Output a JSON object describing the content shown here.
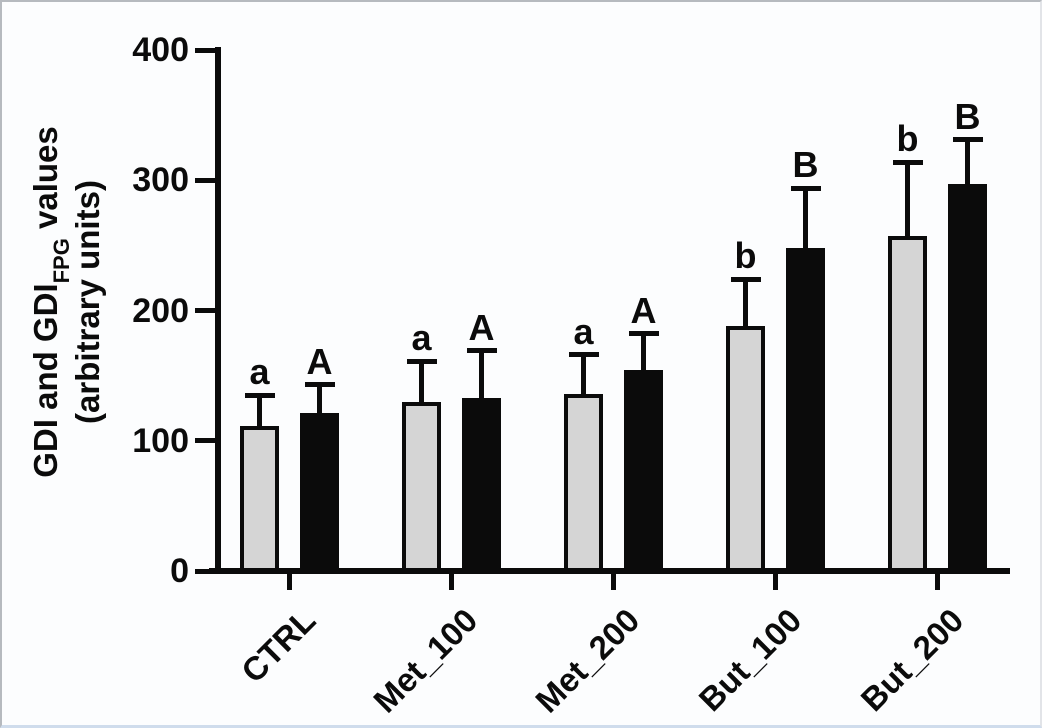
{
  "chart_data": {
    "type": "bar",
    "title": "",
    "ylabel": "GDI and GDI_FPG values (arbitrary units)",
    "ylabel_parts": {
      "pre": "GDI and GDI",
      "sub": "FPG",
      "post": " values",
      "line2": "(arbitrary units)"
    },
    "xlabel": "",
    "categories": [
      "CTRL",
      "Met_100",
      "Met_200",
      "But_100",
      "But_200"
    ],
    "series": [
      {
        "name": "GDI",
        "bar_color": "#d5d5d5",
        "border_color": "#0b0b0b",
        "values": [
          111,
          130,
          136,
          188,
          257
        ],
        "error_bars_upper": [
          24,
          31,
          30,
          36,
          57
        ],
        "sig_labels": [
          "a",
          "a",
          "a",
          "b",
          "b"
        ]
      },
      {
        "name": "GDI_FPG",
        "bar_color": "#0b0b0b",
        "border_color": "#0b0b0b",
        "values": [
          121,
          133,
          154,
          248,
          297
        ],
        "error_bars_upper": [
          22,
          36,
          28,
          46,
          34
        ],
        "sig_labels": [
          "A",
          "A",
          "A",
          "B",
          "B"
        ]
      }
    ],
    "ylim": [
      0,
      400
    ],
    "yticks": [
      0,
      100,
      200,
      300,
      400
    ],
    "grid": false,
    "legend": false,
    "axis_color": "#0b0b0b",
    "background_color": "#fcfdfe",
    "error_bar_style": "upper-only"
  }
}
